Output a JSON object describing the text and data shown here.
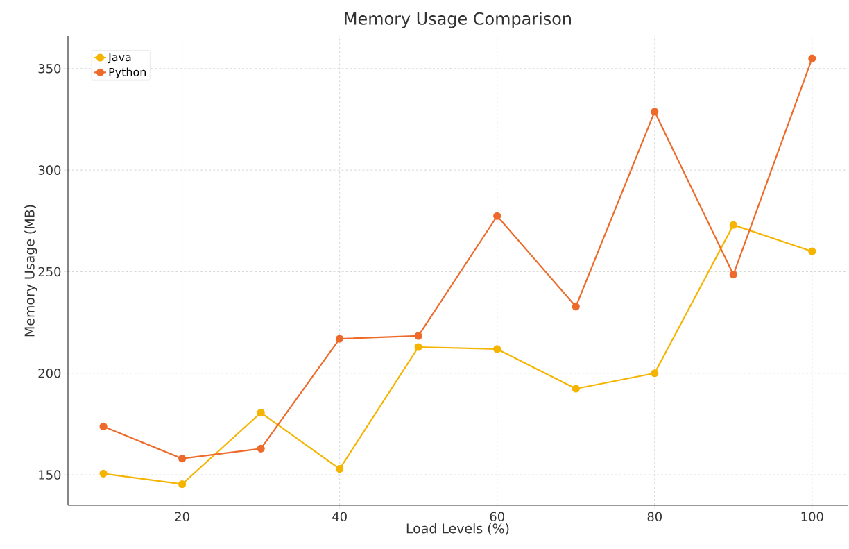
{
  "chart_data": {
    "type": "line",
    "title": "Memory Usage Comparison",
    "xlabel": "Load Levels (%)",
    "ylabel": "Memory Usage (MB)",
    "x": [
      10,
      20,
      30,
      40,
      50,
      60,
      70,
      80,
      90,
      100
    ],
    "series": [
      {
        "name": "Java",
        "color": "#f5b400",
        "values": [
          150.6,
          145.4,
          180.6,
          152.9,
          212.9,
          211.9,
          192.4,
          200,
          273,
          260
        ]
      },
      {
        "name": "Python",
        "color": "#ee6a2a",
        "values": [
          173.8,
          158,
          162.9,
          217,
          218.4,
          277.4,
          232.8,
          328.8,
          248.6,
          355
        ]
      }
    ],
    "xlim": [
      5.5,
      104.5
    ],
    "ylim": [
      135,
      366
    ],
    "xticks": [
      20,
      40,
      60,
      80,
      100
    ],
    "yticks": [
      150,
      200,
      250,
      300,
      350
    ],
    "grid": true,
    "legend": "top left",
    "marker": "circle",
    "line_style": "solid"
  }
}
